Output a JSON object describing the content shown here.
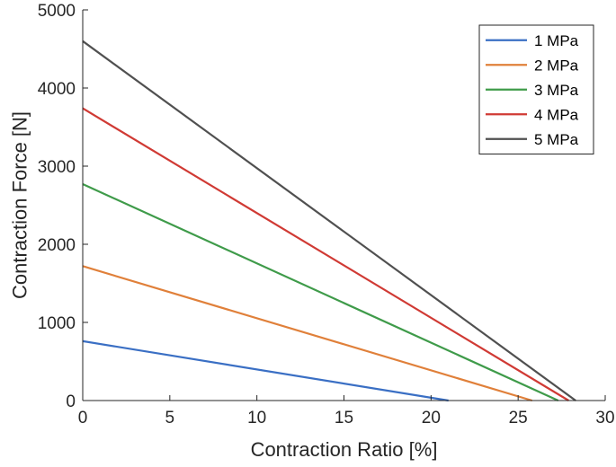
{
  "chart_data": {
    "type": "line",
    "title": "",
    "xlabel": "Contraction Ratio [%]",
    "ylabel": "Contraction Force [N]",
    "xlim": [
      0,
      30
    ],
    "ylim": [
      0,
      5000
    ],
    "xticks": [
      0,
      5,
      10,
      15,
      20,
      25,
      30
    ],
    "yticks": [
      0,
      1000,
      2000,
      3000,
      4000,
      5000
    ],
    "grid": false,
    "legend_position": "top-right",
    "series": [
      {
        "name": "1 MPa",
        "color": "#3a6fc4",
        "x": [
          0,
          21.0
        ],
        "y": [
          760,
          0
        ]
      },
      {
        "name": "2 MPa",
        "color": "#e0803a",
        "x": [
          0,
          25.8
        ],
        "y": [
          1720,
          0
        ]
      },
      {
        "name": "3 MPa",
        "color": "#3f9b4a",
        "x": [
          0,
          27.3
        ],
        "y": [
          2770,
          0
        ]
      },
      {
        "name": "4 MPa",
        "color": "#d03a34",
        "x": [
          0,
          27.9
        ],
        "y": [
          3740,
          0
        ]
      },
      {
        "name": "5 MPa",
        "color": "#505050",
        "x": [
          0,
          28.3
        ],
        "y": [
          4600,
          0
        ]
      }
    ]
  }
}
